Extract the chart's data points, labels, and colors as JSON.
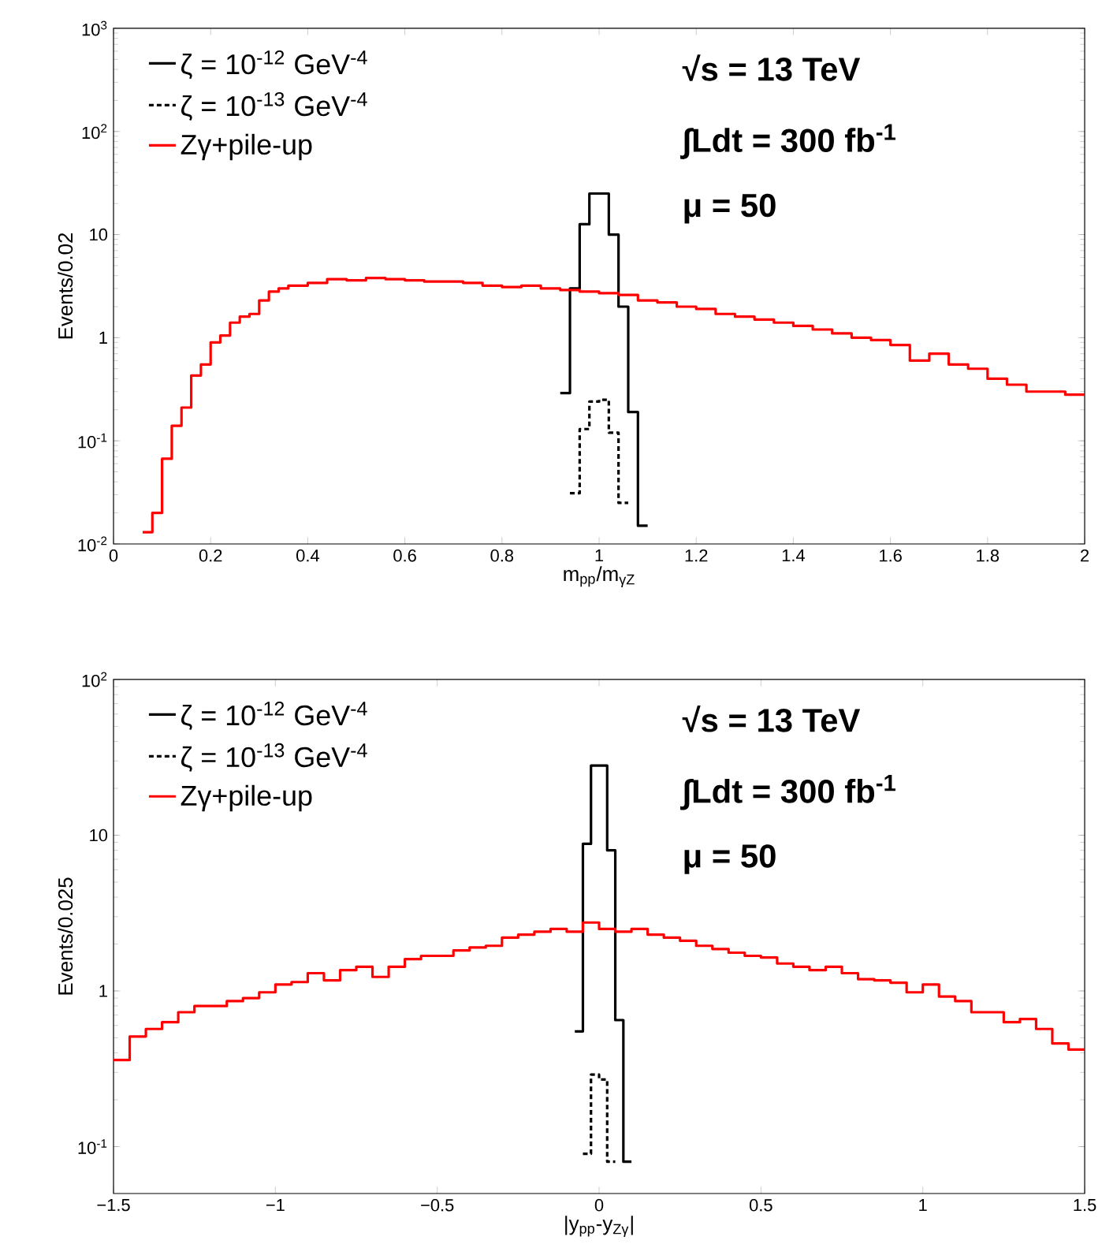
{
  "chart_data": [
    {
      "type": "step",
      "xlabel": "m$_{pp}$/m$_{γZ}$",
      "ylabel": "Events/0.02",
      "log": "y",
      "legend": "top left",
      "xlim": [
        0,
        2
      ],
      "ylim": [
        0.01,
        1000
      ],
      "xticks": [
        {
          "value": 0,
          "label": "0"
        },
        {
          "value": 0.2,
          "label": "0.2"
        },
        {
          "value": 0.4,
          "label": "0.4"
        },
        {
          "value": 0.6,
          "label": "0.6"
        },
        {
          "value": 0.8,
          "label": "0.8"
        },
        {
          "value": 1,
          "label": "1"
        },
        {
          "value": 1.2,
          "label": "1.2"
        },
        {
          "value": 1.4,
          "label": "1.4"
        },
        {
          "value": 1.6,
          "label": "1.6"
        },
        {
          "value": 1.8,
          "label": "1.8"
        },
        {
          "value": 2,
          "label": "2"
        }
      ],
      "yticks": [
        {
          "value": 0.01,
          "label": "10$^{-2}$"
        },
        {
          "value": 0.1,
          "label": "10$^{-1}$"
        },
        {
          "value": 1,
          "label": "1"
        },
        {
          "value": 10,
          "label": "10"
        },
        {
          "value": 100,
          "label": "10$^{2}$"
        },
        {
          "value": 1000,
          "label": "10$^{3}$"
        }
      ],
      "annotations": [
        "√s = 13 TeV",
        "∫Ldt = 300 fb$^{-1}$",
        "μ = 50"
      ],
      "series": [
        {
          "name": "ζ = 10$^{-12}$ GeV$^{-4}$",
          "color": "#000000",
          "line_style": "solid",
          "x": [
            0.92,
            0.94,
            0.96,
            0.98,
            1.0,
            1.02,
            1.04,
            1.06,
            1.08,
            1.1
          ],
          "values": [
            0.29,
            3,
            12.6,
            25,
            25,
            10,
            2,
            0.19,
            0.015,
            0.015
          ]
        },
        {
          "name": "ζ = 10$^{-13}$ GeV$^{-4}$",
          "color": "#000000",
          "line_style": "dashed",
          "x": [
            0.94,
            0.96,
            0.98,
            1.0,
            1.02,
            1.04,
            1.06
          ],
          "values": [
            0.031,
            0.13,
            0.24,
            0.25,
            0.12,
            0.025,
            0.025
          ]
        },
        {
          "name": "Zγ+pile-up",
          "color": "#ff0000",
          "line_style": "solid",
          "x": [
            0.06,
            0.08,
            0.1,
            0.12,
            0.14,
            0.16,
            0.18,
            0.2,
            0.22,
            0.24,
            0.26,
            0.28,
            0.3,
            0.32,
            0.34,
            0.36,
            0.4,
            0.44,
            0.48,
            0.52,
            0.56,
            0.6,
            0.64,
            0.68,
            0.72,
            0.76,
            0.8,
            0.84,
            0.88,
            0.92,
            0.96,
            1.0,
            1.04,
            1.08,
            1.12,
            1.16,
            1.2,
            1.24,
            1.28,
            1.32,
            1.36,
            1.4,
            1.44,
            1.48,
            1.52,
            1.56,
            1.6,
            1.64,
            1.68,
            1.72,
            1.76,
            1.8,
            1.84,
            1.88,
            1.92,
            1.96,
            2.0
          ],
          "values": [
            0.013,
            0.02,
            0.067,
            0.14,
            0.21,
            0.43,
            0.55,
            0.9,
            1.05,
            1.4,
            1.6,
            1.7,
            2.3,
            2.8,
            3.0,
            3.2,
            3.4,
            3.7,
            3.6,
            3.8,
            3.7,
            3.6,
            3.5,
            3.5,
            3.4,
            3.2,
            3.1,
            3.2,
            3.0,
            2.9,
            2.8,
            2.7,
            2.6,
            2.3,
            2.2,
            2.0,
            1.9,
            1.7,
            1.6,
            1.5,
            1.4,
            1.3,
            1.2,
            1.1,
            1.0,
            0.95,
            0.85,
            0.6,
            0.7,
            0.55,
            0.5,
            0.4,
            0.35,
            0.3,
            0.3,
            0.28,
            0.28
          ]
        }
      ]
    },
    {
      "type": "step",
      "xlabel": "|y$_{pp}$-y$_{Zγ}$|",
      "ylabel": "Events/0.025",
      "log": "y",
      "legend": "top left",
      "xlim": [
        -1.5,
        1.5
      ],
      "ylim": [
        0.05,
        100
      ],
      "xticks": [
        {
          "value": -1.5,
          "label": "−1.5"
        },
        {
          "value": -1,
          "label": "−1"
        },
        {
          "value": -0.5,
          "label": "−0.5"
        },
        {
          "value": 0,
          "label": "0"
        },
        {
          "value": 0.5,
          "label": "0.5"
        },
        {
          "value": 1,
          "label": "1"
        },
        {
          "value": 1.5,
          "label": "1.5"
        }
      ],
      "yticks": [
        {
          "value": 0.1,
          "label": "10$^{-1}$"
        },
        {
          "value": 1,
          "label": "1"
        },
        {
          "value": 10,
          "label": "10"
        },
        {
          "value": 100,
          "label": "10$^{2}$"
        }
      ],
      "annotations": [
        "√s = 13 TeV",
        "∫Ldt = 300 fb$^{-1}$",
        "μ = 50"
      ],
      "series": [
        {
          "name": "ζ = 10$^{-12}$ GeV$^{-4}$",
          "color": "#000000",
          "line_style": "solid",
          "x": [
            -0.075,
            -0.05,
            -0.025,
            0,
            0.025,
            0.05,
            0.075,
            0.1
          ],
          "values": [
            0.55,
            8.8,
            28,
            28,
            8,
            0.65,
            0.08,
            0.08
          ]
        },
        {
          "name": "ζ = 10$^{-13}$ GeV$^{-4}$",
          "color": "#000000",
          "line_style": "dashed",
          "x": [
            -0.05,
            -0.025,
            0,
            0.025,
            0.05
          ],
          "values": [
            0.09,
            0.29,
            0.27,
            0.08,
            0.08
          ]
        },
        {
          "name": "Zγ+pile-up",
          "color": "#ff0000",
          "line_style": "solid",
          "x": [
            -1.5,
            -1.45,
            -1.4,
            -1.35,
            -1.3,
            -1.25,
            -1.2,
            -1.15,
            -1.1,
            -1.05,
            -1.0,
            -0.95,
            -0.9,
            -0.85,
            -0.8,
            -0.75,
            -0.7,
            -0.65,
            -0.6,
            -0.55,
            -0.5,
            -0.45,
            -0.4,
            -0.35,
            -0.3,
            -0.25,
            -0.2,
            -0.15,
            -0.1,
            -0.05,
            0,
            0.05,
            0.1,
            0.15,
            0.2,
            0.25,
            0.3,
            0.35,
            0.4,
            0.45,
            0.5,
            0.55,
            0.6,
            0.65,
            0.7,
            0.75,
            0.8,
            0.85,
            0.9,
            0.95,
            1.0,
            1.05,
            1.1,
            1.15,
            1.2,
            1.25,
            1.3,
            1.35,
            1.4,
            1.45,
            1.5
          ],
          "values": [
            0.36,
            0.51,
            0.57,
            0.63,
            0.73,
            0.8,
            0.8,
            0.86,
            0.9,
            0.98,
            1.1,
            1.14,
            1.3,
            1.17,
            1.36,
            1.43,
            1.23,
            1.43,
            1.6,
            1.68,
            1.68,
            1.82,
            1.9,
            1.95,
            2.2,
            2.3,
            2.4,
            2.5,
            2.4,
            2.75,
            2.5,
            2.4,
            2.5,
            2.3,
            2.2,
            2.1,
            1.95,
            1.86,
            1.76,
            1.68,
            1.64,
            1.5,
            1.43,
            1.36,
            1.43,
            1.3,
            1.19,
            1.17,
            1.13,
            0.98,
            1.1,
            0.92,
            0.86,
            0.73,
            0.73,
            0.63,
            0.66,
            0.57,
            0.46,
            0.42,
            0.42
          ]
        }
      ]
    }
  ]
}
